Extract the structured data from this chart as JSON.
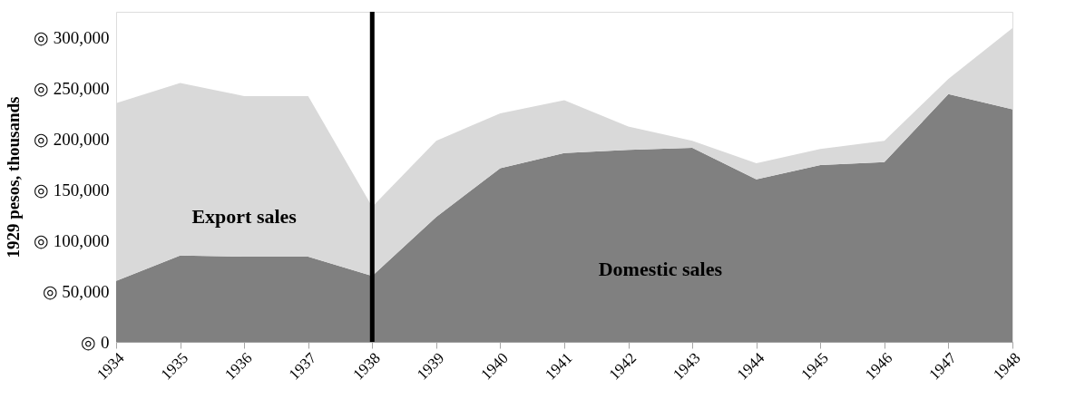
{
  "chart_data": {
    "type": "area",
    "ylabel": "1929 pesos, thousands",
    "stacked": true,
    "categories": [
      "1934",
      "1935",
      "1936",
      "1937",
      "1938",
      "1939",
      "1940",
      "1941",
      "1942",
      "1943",
      "1944",
      "1945",
      "1946",
      "1947",
      "1948"
    ],
    "series": [
      {
        "name": "Domestic sales",
        "color": "#808080",
        "values": [
          60000,
          85000,
          84000,
          84000,
          65000,
          123000,
          171000,
          186000,
          189000,
          191000,
          160000,
          174000,
          177000,
          244000,
          229000
        ]
      },
      {
        "name": "Export sales",
        "color": "#d9d9d9",
        "values": [
          175000,
          170000,
          158000,
          158000,
          68000,
          75000,
          54000,
          52000,
          23000,
          7000,
          16000,
          16000,
          21000,
          15000,
          80000
        ]
      }
    ],
    "ylim": [
      0,
      325000
    ],
    "yticks": [
      {
        "value": 0,
        "label": "◎ 0"
      },
      {
        "value": 50000,
        "label": "◎ 50,000"
      },
      {
        "value": 100000,
        "label": "◎ 100,000"
      },
      {
        "value": 150000,
        "label": "◎ 150,000"
      },
      {
        "value": 200000,
        "label": "◎ 200,000"
      },
      {
        "value": 250000,
        "label": "◎ 250,000"
      },
      {
        "value": 300000,
        "label": "◎ 300,000"
      }
    ],
    "ref_lines": [
      {
        "axis": "x",
        "value": "1938",
        "color": "#000000"
      }
    ],
    "grid": false,
    "legend": false
  }
}
